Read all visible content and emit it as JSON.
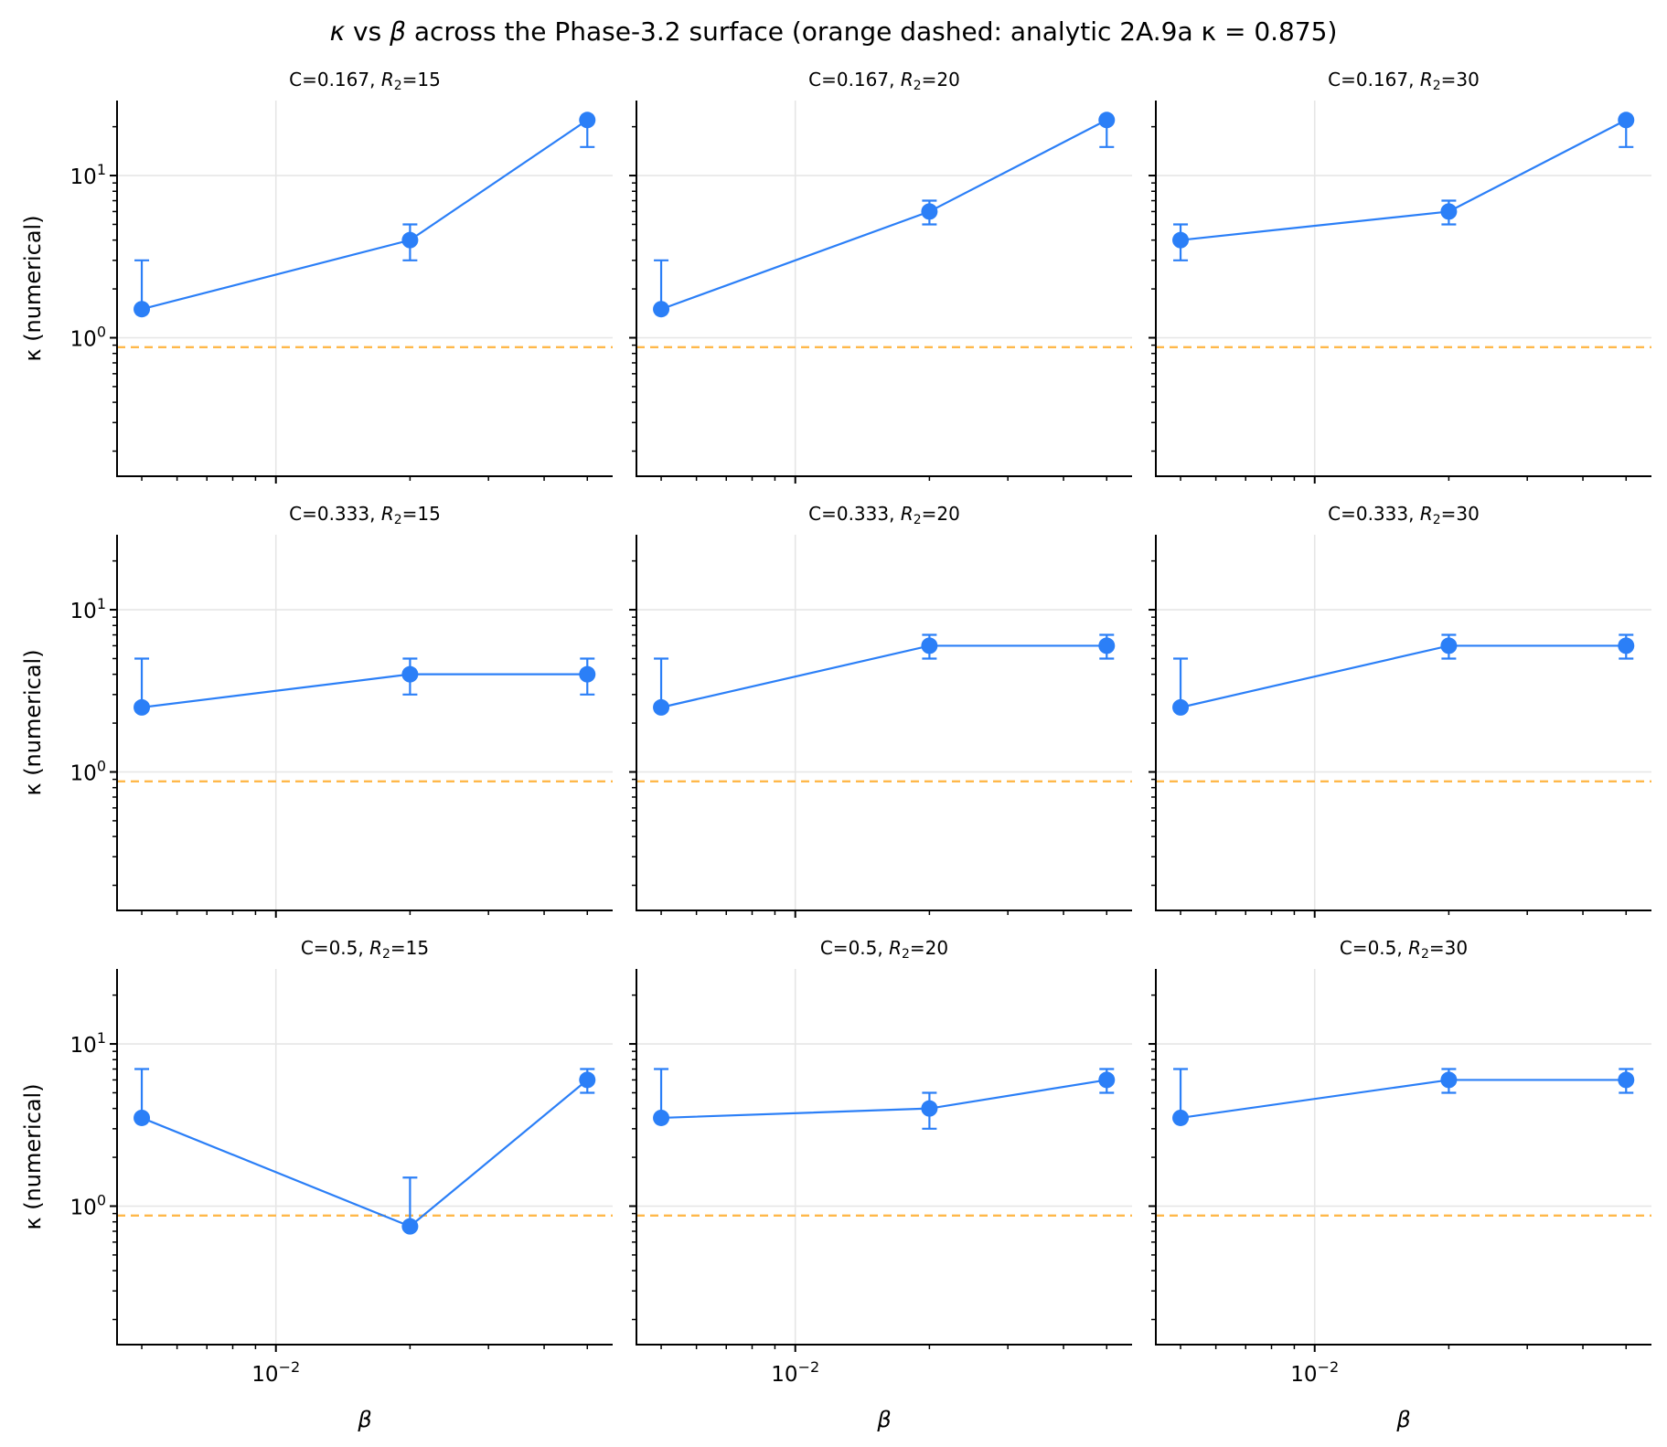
{
  "chart_data": {
    "type": "line",
    "title": "κ vs β across the Phase-3.2 surface (orange dashed: analytic 2A.9a κ = 0.875)",
    "title_parts": {
      "kappa": "κ",
      "vs": " vs ",
      "beta": "β",
      "rest": " across the Phase-3.2 surface (orange dashed: analytic 2A.9a κ = 0.875)"
    },
    "xlabel": "β",
    "ylabel": "κ (numerical)",
    "xscale": "log",
    "yscale": "log",
    "xlim": [
      0.0044,
      0.057
    ],
    "ylim": [
      0.14,
      29
    ],
    "x_tick_labels": [
      {
        "value": 0.01,
        "base": "10",
        "exp": "−2"
      }
    ],
    "y_tick_labels": [
      {
        "value": 1,
        "base": "10",
        "exp": "0"
      },
      {
        "value": 10,
        "base": "10",
        "exp": "1"
      }
    ],
    "grid": true,
    "reference_line": {
      "value": 0.875,
      "label": "analytic 2A.9a κ = 0.875",
      "style": "dashed",
      "color": "#ffb84a"
    },
    "series_color": "#2b7ff7",
    "panels": [
      {
        "C": "0.167",
        "R2": "15",
        "title_prefix": "C=0.167, ",
        "title_R": "R",
        "title_sub": "2",
        "title_suffix": "=15",
        "x": [
          0.005,
          0.02,
          0.05
        ],
        "y": [
          1.5,
          4,
          22
        ],
        "err_low": [
          1.5,
          3,
          15
        ],
        "err_high": [
          3,
          5,
          22
        ]
      },
      {
        "C": "0.167",
        "R2": "20",
        "title_prefix": "C=0.167, ",
        "title_R": "R",
        "title_sub": "2",
        "title_suffix": "=20",
        "x": [
          0.005,
          0.02,
          0.05
        ],
        "y": [
          1.5,
          6,
          22
        ],
        "err_low": [
          1.5,
          5,
          15
        ],
        "err_high": [
          3,
          7,
          22
        ]
      },
      {
        "C": "0.167",
        "R2": "30",
        "title_prefix": "C=0.167, ",
        "title_R": "R",
        "title_sub": "2",
        "title_suffix": "=30",
        "x": [
          0.005,
          0.02,
          0.05
        ],
        "y": [
          4,
          6,
          22
        ],
        "err_low": [
          3,
          5,
          15
        ],
        "err_high": [
          5,
          7,
          22
        ]
      },
      {
        "C": "0.333",
        "R2": "15",
        "title_prefix": "C=0.333, ",
        "title_R": "R",
        "title_sub": "2",
        "title_suffix": "=15",
        "x": [
          0.005,
          0.02,
          0.05
        ],
        "y": [
          2.5,
          4,
          4
        ],
        "err_low": [
          2.5,
          3,
          3
        ],
        "err_high": [
          5,
          5,
          5
        ]
      },
      {
        "C": "0.333",
        "R2": "20",
        "title_prefix": "C=0.333, ",
        "title_R": "R",
        "title_sub": "2",
        "title_suffix": "=20",
        "x": [
          0.005,
          0.02,
          0.05
        ],
        "y": [
          2.5,
          6,
          6
        ],
        "err_low": [
          2.5,
          5,
          5
        ],
        "err_high": [
          5,
          7,
          7
        ]
      },
      {
        "C": "0.333",
        "R2": "30",
        "title_prefix": "C=0.333, ",
        "title_R": "R",
        "title_sub": "2",
        "title_suffix": "=30",
        "x": [
          0.005,
          0.02,
          0.05
        ],
        "y": [
          2.5,
          6,
          6
        ],
        "err_low": [
          2.5,
          5,
          5
        ],
        "err_high": [
          5,
          7,
          7
        ]
      },
      {
        "C": "0.5",
        "R2": "15",
        "title_prefix": "C=0.5, ",
        "title_R": "R",
        "title_sub": "2",
        "title_suffix": "=15",
        "x": [
          0.005,
          0.02,
          0.05
        ],
        "y": [
          3.5,
          0.75,
          6
        ],
        "err_low": [
          3.5,
          0.75,
          5
        ],
        "err_high": [
          7,
          1.5,
          7
        ]
      },
      {
        "C": "0.5",
        "R2": "20",
        "title_prefix": "C=0.5, ",
        "title_R": "R",
        "title_sub": "2",
        "title_suffix": "=20",
        "x": [
          0.005,
          0.02,
          0.05
        ],
        "y": [
          3.5,
          4,
          6
        ],
        "err_low": [
          3.5,
          3,
          5
        ],
        "err_high": [
          7,
          5,
          7
        ]
      },
      {
        "C": "0.5",
        "R2": "30",
        "title_prefix": "C=0.5, ",
        "title_R": "R",
        "title_sub": "2",
        "title_suffix": "=30",
        "x": [
          0.005,
          0.02,
          0.05
        ],
        "y": [
          3.5,
          6,
          6
        ],
        "err_low": [
          3.5,
          5,
          5
        ],
        "err_high": [
          7,
          7,
          7
        ]
      }
    ]
  }
}
